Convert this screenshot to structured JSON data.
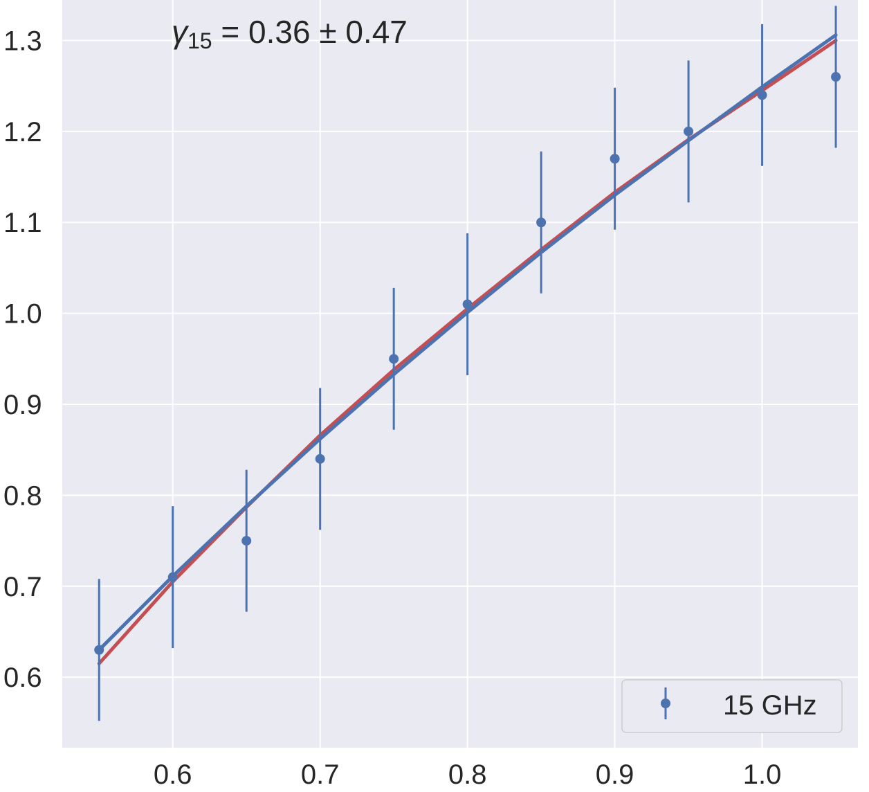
{
  "colors": {
    "background": "#ffffff",
    "plot_area": "#eaeaf2",
    "grid": "#ffffff",
    "data_series": "#4c72b0",
    "fit_blue": "#4c72b0",
    "fit_red": "#c44e52",
    "text": "#262626",
    "legend_border": "#cccccc"
  },
  "chart_data": {
    "type": "scatter",
    "title": "",
    "xlabel": "",
    "ylabel": "",
    "xlim": [
      0.525,
      1.065
    ],
    "ylim": [
      0.5225,
      1.3445
    ],
    "xticks": [
      0.6,
      0.7,
      0.8,
      0.9,
      1.0
    ],
    "xtick_labels": [
      "0.6",
      "0.7",
      "0.8",
      "0.9",
      "1.0"
    ],
    "yticks": [
      0.6,
      0.7,
      0.8,
      0.9,
      1.0,
      1.1,
      1.2,
      1.3
    ],
    "ytick_labels": [
      "0.6",
      "0.7",
      "0.8",
      "0.9",
      "1.0",
      "1.1",
      "1.2",
      "1.3"
    ],
    "grid": true,
    "legend_position": "lower-right",
    "annotation": {
      "symbol": "γ",
      "subscript": "15",
      "text": " = 0.36 ± 0.47"
    },
    "series": [
      {
        "name": "15 GHz",
        "kind": "errorbar",
        "x": [
          0.55,
          0.6,
          0.65,
          0.7,
          0.75,
          0.8,
          0.85,
          0.9,
          0.95,
          1.0,
          1.05
        ],
        "y": [
          0.63,
          0.71,
          0.75,
          0.84,
          0.95,
          1.01,
          1.1,
          1.17,
          1.2,
          1.24,
          1.26
        ],
        "yerr": [
          0.078,
          0.078,
          0.078,
          0.078,
          0.078,
          0.078,
          0.078,
          0.078,
          0.078,
          0.078,
          0.078
        ]
      },
      {
        "kind": "line",
        "x": [
          0.55,
          0.6,
          0.65,
          0.7,
          0.75,
          0.8,
          0.85,
          0.9,
          0.95,
          1.0,
          1.05
        ],
        "y": [
          0.615,
          0.705,
          0.787,
          0.866,
          0.938,
          1.005,
          1.07,
          1.133,
          1.191,
          1.245,
          1.3
        ]
      },
      {
        "kind": "line",
        "x": [
          0.55,
          0.6,
          0.65,
          0.7,
          0.75,
          0.8,
          0.85,
          0.9,
          0.95,
          1.0,
          1.05
        ],
        "y": [
          0.63,
          0.711,
          0.788,
          0.862,
          0.933,
          1.001,
          1.067,
          1.13,
          1.19,
          1.249,
          1.306
        ]
      }
    ]
  }
}
